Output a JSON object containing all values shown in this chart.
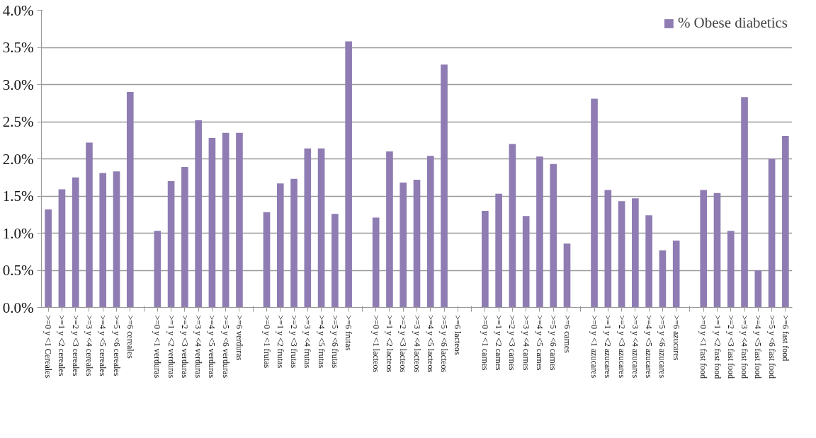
{
  "chart_data": {
    "type": "bar",
    "categories": [
      ">=0 y <1 Cereales",
      ">=1 y <2 cereales",
      ">=2 y <3 cereales",
      ">=3 y <4 cereales",
      ">=4 y <5 cereales",
      ">=5 y <6 cereales",
      ">=6 cereales",
      null,
      ">=0 y <1 verduras",
      ">=1 y <2 verduras",
      ">=2 y <3 verduras",
      ">=3 y <4 verduras",
      ">=4 y <5 verduras",
      ">=5 y <6 verduras",
      ">=6 verduras",
      null,
      ">=0 y <1 frutas",
      ">=1 y <2 frutas",
      ">=2 y <3 frutas",
      ">=3 y <4 frutas",
      ">=4 y <5 frutas",
      ">=5 y <6 frutas",
      ">=6 frutas",
      null,
      ">=0 y <1 lacteos",
      ">=1 y <2 lacteos",
      ">=2 y <3 lacteos",
      ">=3 y <4 lacteos",
      ">=4 y <5 lacteos",
      ">=5 y <6 lacteos",
      ">=6 lacteos",
      null,
      ">=0 y <1 carnes",
      ">=1 y <2 carnes",
      ">=2 y <3 carnes",
      ">=3 y <4 carnes",
      ">=4 y <5 carnes",
      ">=5 y <6 carnes",
      ">=6 carnes",
      null,
      ">=0 y <1 azucares",
      ">=1 y <2 azucares",
      ">=2 y <3 azucares",
      ">=3 y <4 azucares",
      ">=4 y <5 azucares",
      ">=5 y <6 azucares",
      ">=6 azucares",
      null,
      ">=0 y <1 fast food",
      ">=1 y <2 fast food",
      ">=2 y <3 fast food",
      ">=3 y <4 fast food",
      ">=4 y <5 fast food",
      ">=5 y <6 fast food",
      ">=6 fast food"
    ],
    "series": [
      {
        "name": "% Obese diabetics",
        "color": "#8e7cb3",
        "values": [
          1.32,
          1.59,
          1.75,
          2.22,
          1.81,
          1.83,
          2.9,
          null,
          1.03,
          1.7,
          1.89,
          2.52,
          2.28,
          2.35,
          2.35,
          null,
          1.28,
          1.67,
          1.73,
          2.14,
          2.14,
          1.26,
          3.58,
          null,
          1.21,
          2.1,
          1.68,
          1.72,
          2.04,
          3.27,
          0,
          null,
          1.3,
          1.53,
          2.2,
          1.23,
          2.03,
          1.93,
          0.86,
          null,
          2.81,
          1.58,
          1.43,
          1.47,
          1.24,
          0.77,
          0.9,
          null,
          1.58,
          1.54,
          1.03,
          2.83,
          0.5,
          2.0,
          2.31
        ]
      }
    ],
    "ylim": [
      0,
      4
    ],
    "yticks": [
      {
        "value": 0,
        "label": "0.0%"
      },
      {
        "value": 0.5,
        "label": "0.5%"
      },
      {
        "value": 1,
        "label": "1.0%"
      },
      {
        "value": 1.5,
        "label": "1.5%"
      },
      {
        "value": 2,
        "label": "2.0%"
      },
      {
        "value": 2.5,
        "label": "2.5%"
      },
      {
        "value": 3,
        "label": "3.0%"
      },
      {
        "value": 3.5,
        "label": "3.5%"
      },
      {
        "value": 4,
        "label": "4.0%"
      }
    ],
    "grid": "y",
    "legend": "top right"
  }
}
